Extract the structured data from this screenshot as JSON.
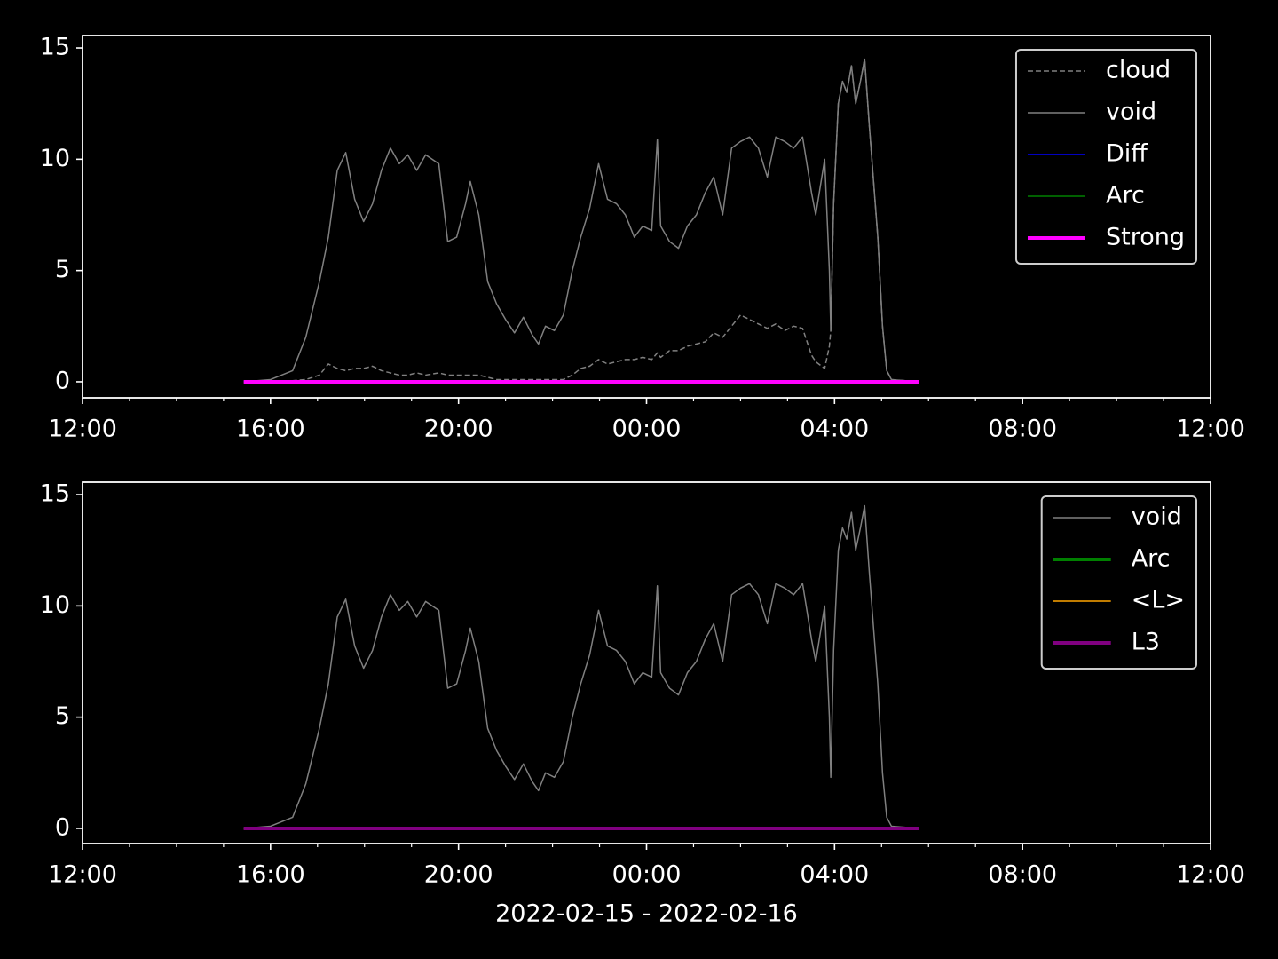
{
  "chart_data": [
    {
      "type": "line",
      "xlim": [
        0,
        24
      ],
      "xticks": [
        {
          "value": 0,
          "label": "12:00"
        },
        {
          "value": 4,
          "label": "16:00"
        },
        {
          "value": 8,
          "label": "20:00"
        },
        {
          "value": 12,
          "label": "00:00"
        },
        {
          "value": 16,
          "label": "04:00"
        },
        {
          "value": 20,
          "label": "08:00"
        },
        {
          "value": 24,
          "label": "12:00"
        }
      ],
      "xminorticks": [
        1,
        2,
        3,
        5,
        6,
        7,
        9,
        10,
        11,
        13,
        14,
        15,
        17,
        18,
        19,
        21,
        22,
        23
      ],
      "ylim": [
        -0.72,
        15.56
      ],
      "yticks": [
        0,
        5,
        10,
        15
      ],
      "legend": "upper right",
      "x": [
        3.43,
        4.0,
        4.47,
        4.75,
        5.04,
        5.23,
        5.42,
        5.6,
        5.79,
        5.98,
        6.17,
        6.36,
        6.55,
        6.74,
        6.92,
        7.11,
        7.3,
        7.58,
        7.77,
        7.96,
        8.15,
        8.25,
        8.43,
        8.62,
        8.81,
        9.0,
        9.19,
        9.38,
        9.57,
        9.7,
        9.85,
        10.04,
        10.23,
        10.42,
        10.6,
        10.79,
        10.98,
        11.17,
        11.36,
        11.55,
        11.74,
        11.92,
        12.11,
        12.23,
        12.3,
        12.49,
        12.68,
        12.87,
        13.06,
        13.25,
        13.43,
        13.62,
        13.81,
        14.0,
        14.19,
        14.38,
        14.57,
        14.75,
        14.94,
        15.13,
        15.32,
        15.51,
        15.6,
        15.79,
        15.89,
        15.92,
        15.98,
        16.08,
        16.17,
        16.26,
        16.36,
        16.45,
        16.55,
        16.64,
        16.74,
        16.83,
        16.92,
        17.02,
        17.11,
        17.21,
        17.79
      ],
      "series": [
        {
          "name": "cloud",
          "color": "#808080",
          "width": 1.5,
          "dashed": true,
          "values": [
            0,
            0,
            0.05,
            0.1,
            0.3,
            0.8,
            0.6,
            0.5,
            0.6,
            0.6,
            0.7,
            0.5,
            0.4,
            0.3,
            0.3,
            0.4,
            0.3,
            0.4,
            0.3,
            0.3,
            0.3,
            0.3,
            0.3,
            0.2,
            0.1,
            0.1,
            0.1,
            0.1,
            0.1,
            0.1,
            0.1,
            0.1,
            0.1,
            0.3,
            0.6,
            0.7,
            1.0,
            0.8,
            0.9,
            1.0,
            1.0,
            1.1,
            1.0,
            1.3,
            1.1,
            1.4,
            1.4,
            1.6,
            1.7,
            1.8,
            2.2,
            2.0,
            2.5,
            3.0,
            2.8,
            2.6,
            2.4,
            2.6,
            2.3,
            2.5,
            2.4,
            1.2,
            0.9,
            0.6,
            1.6,
            2.3,
            8,
            12.5,
            13.5,
            13.0,
            14.2,
            12.5,
            13.5,
            14.5,
            11.5,
            9.0,
            6.5,
            2.5,
            0.5,
            0.1,
            0
          ]
        },
        {
          "name": "void",
          "color": "#808080",
          "width": 1.5,
          "values": [
            0,
            0.1,
            0.5,
            2,
            4.5,
            6.5,
            9.5,
            10.3,
            8.2,
            7.2,
            8,
            9.5,
            10.5,
            9.8,
            10.2,
            9.5,
            10.2,
            9.8,
            6.3,
            6.5,
            8.0,
            9,
            7.5,
            4.5,
            3.5,
            2.8,
            2.2,
            2.9,
            2.1,
            1.7,
            2.5,
            2.3,
            3.0,
            5,
            6.5,
            7.8,
            9.8,
            8.2,
            8.0,
            7.5,
            6.5,
            7.0,
            6.8,
            10.9,
            7.0,
            6.3,
            6.0,
            7.0,
            7.5,
            8.5,
            9.2,
            7.5,
            10.5,
            10.8,
            11.0,
            10.5,
            9.2,
            11.0,
            10.8,
            10.5,
            11.0,
            8.5,
            7.5,
            10.0,
            5,
            2.3,
            8,
            12.5,
            13.5,
            13.0,
            14.2,
            12.5,
            13.5,
            14.5,
            11.5,
            9.0,
            6.5,
            2.5,
            0.5,
            0.1,
            0
          ]
        },
        {
          "name": "Diff",
          "color": "#0000ff",
          "width": 1.5,
          "x": [
            3.43,
            17.79
          ],
          "values": [
            0,
            0
          ]
        },
        {
          "name": "Arc",
          "color": "#008000",
          "width": 1.5,
          "x": [
            3.43,
            17.79
          ],
          "values": [
            0,
            0
          ]
        },
        {
          "name": "Strong",
          "color": "#ff00ff",
          "width": 4,
          "x": [
            3.43,
            17.79
          ],
          "values": [
            0,
            0
          ]
        }
      ]
    },
    {
      "type": "line",
      "xlabel": "2022-02-15 - 2022-02-16",
      "xlim": [
        0,
        24
      ],
      "xticks": [
        {
          "value": 0,
          "label": "12:00"
        },
        {
          "value": 4,
          "label": "16:00"
        },
        {
          "value": 8,
          "label": "20:00"
        },
        {
          "value": 12,
          "label": "00:00"
        },
        {
          "value": 16,
          "label": "04:00"
        },
        {
          "value": 20,
          "label": "08:00"
        },
        {
          "value": 24,
          "label": "12:00"
        }
      ],
      "xminorticks": [
        1,
        2,
        3,
        5,
        6,
        7,
        9,
        10,
        11,
        13,
        14,
        15,
        17,
        18,
        19,
        21,
        22,
        23
      ],
      "ylim": [
        -0.68,
        15.56
      ],
      "yticks": [
        0,
        5,
        10,
        15
      ],
      "legend": "upper right",
      "x": [
        3.43,
        4.0,
        4.47,
        4.75,
        5.04,
        5.23,
        5.42,
        5.6,
        5.79,
        5.98,
        6.17,
        6.36,
        6.55,
        6.74,
        6.92,
        7.11,
        7.3,
        7.58,
        7.77,
        7.96,
        8.15,
        8.25,
        8.43,
        8.62,
        8.81,
        9.0,
        9.19,
        9.38,
        9.57,
        9.7,
        9.85,
        10.04,
        10.23,
        10.42,
        10.6,
        10.79,
        10.98,
        11.17,
        11.36,
        11.55,
        11.74,
        11.92,
        12.11,
        12.23,
        12.3,
        12.49,
        12.68,
        12.87,
        13.06,
        13.25,
        13.43,
        13.62,
        13.81,
        14.0,
        14.19,
        14.38,
        14.57,
        14.75,
        14.94,
        15.13,
        15.32,
        15.51,
        15.6,
        15.79,
        15.89,
        15.92,
        15.98,
        16.08,
        16.17,
        16.26,
        16.36,
        16.45,
        16.55,
        16.64,
        16.74,
        16.83,
        16.92,
        17.02,
        17.11,
        17.21,
        17.79
      ],
      "series": [
        {
          "name": "void",
          "color": "#808080",
          "width": 1.5,
          "values": [
            0,
            0.1,
            0.5,
            2,
            4.5,
            6.5,
            9.5,
            10.3,
            8.2,
            7.2,
            8,
            9.5,
            10.5,
            9.8,
            10.2,
            9.5,
            10.2,
            9.8,
            6.3,
            6.5,
            8.0,
            9,
            7.5,
            4.5,
            3.5,
            2.8,
            2.2,
            2.9,
            2.1,
            1.7,
            2.5,
            2.3,
            3.0,
            5,
            6.5,
            7.8,
            9.8,
            8.2,
            8.0,
            7.5,
            6.5,
            7.0,
            6.8,
            10.9,
            7.0,
            6.3,
            6.0,
            7.0,
            7.5,
            8.5,
            9.2,
            7.5,
            10.5,
            10.8,
            11.0,
            10.5,
            9.2,
            11.0,
            10.8,
            10.5,
            11.0,
            8.5,
            7.5,
            10.0,
            5,
            2.3,
            8,
            12.5,
            13.5,
            13.0,
            14.2,
            12.5,
            13.5,
            14.5,
            11.5,
            9.0,
            6.5,
            2.5,
            0.5,
            0.1,
            0
          ]
        },
        {
          "name": "Arc",
          "color": "#008000",
          "width": 4,
          "x": [
            3.43,
            17.79
          ],
          "values": [
            0,
            0
          ]
        },
        {
          "name": "<L>",
          "color": "#ffa500",
          "width": 1.5,
          "x": [
            3.43,
            17.79
          ],
          "values": [
            0,
            0
          ]
        },
        {
          "name": "L3",
          "color": "#800080",
          "width": 4,
          "x": [
            3.43,
            17.79
          ],
          "values": [
            0,
            0
          ]
        }
      ]
    }
  ]
}
